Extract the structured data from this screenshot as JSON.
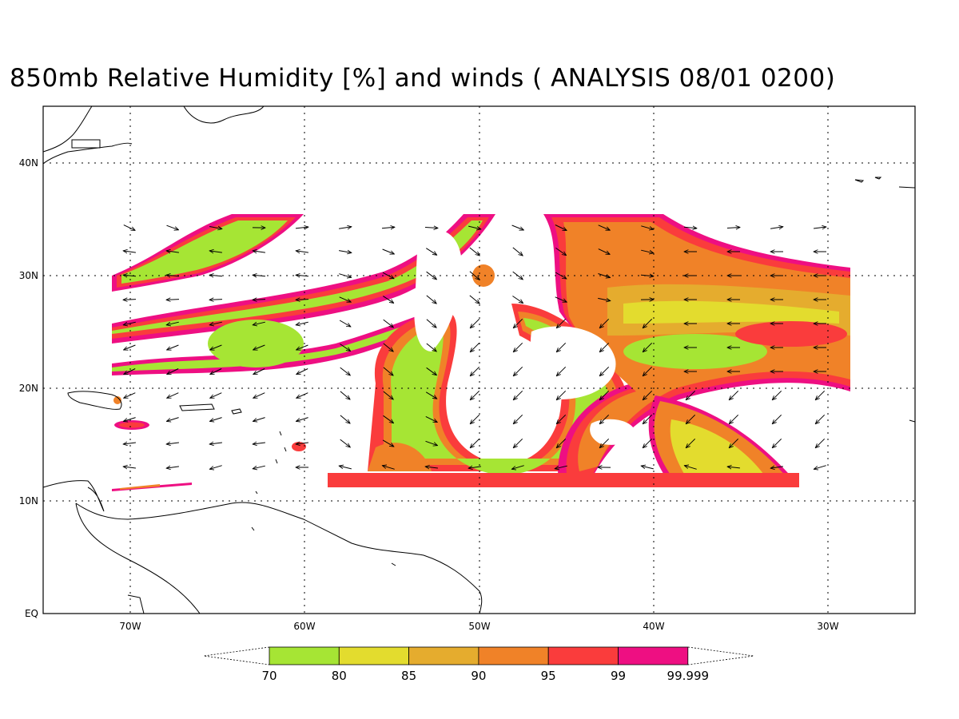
{
  "title": "850mb Relative Humidity [%] and winds ( ANALYSIS 08/01 0200)",
  "axes": {
    "lon_labels": [
      "70W",
      "60W",
      "50W",
      "40W",
      "30W"
    ],
    "lat_labels": [
      "40N",
      "30N",
      "20N",
      "10N",
      "EQ"
    ]
  },
  "colorbar": {
    "labels": [
      "70",
      "80",
      "85",
      "90",
      "95",
      "99",
      "99.999"
    ],
    "colors": [
      "#a6e534",
      "#e3dc2e",
      "#e5ac2e",
      "#f08228",
      "#fa3c3c",
      "#ee0f82"
    ]
  },
  "chart_data": {
    "type": "heatmap",
    "title": "850mb Relative Humidity [%] and winds ( ANALYSIS 08/01 0200)",
    "x_ticks": [
      "70W",
      "60W",
      "50W",
      "40W",
      "30W"
    ],
    "y_ticks": [
      "40N",
      "30N",
      "20N",
      "10N",
      "EQ"
    ],
    "x_range_lon": [
      -75,
      -25
    ],
    "y_range_lat": [
      0,
      45
    ],
    "grid": true,
    "levels": [
      70,
      80,
      85,
      90,
      95,
      99,
      99.999
    ],
    "colors": [
      "#a6e534",
      "#e3dc2e",
      "#e5ac2e",
      "#f08228",
      "#fa3c3c",
      "#ee0f82"
    ],
    "data_domain_lon": [
      -71,
      -29
    ],
    "data_domain_lat": [
      11,
      36
    ]
  }
}
